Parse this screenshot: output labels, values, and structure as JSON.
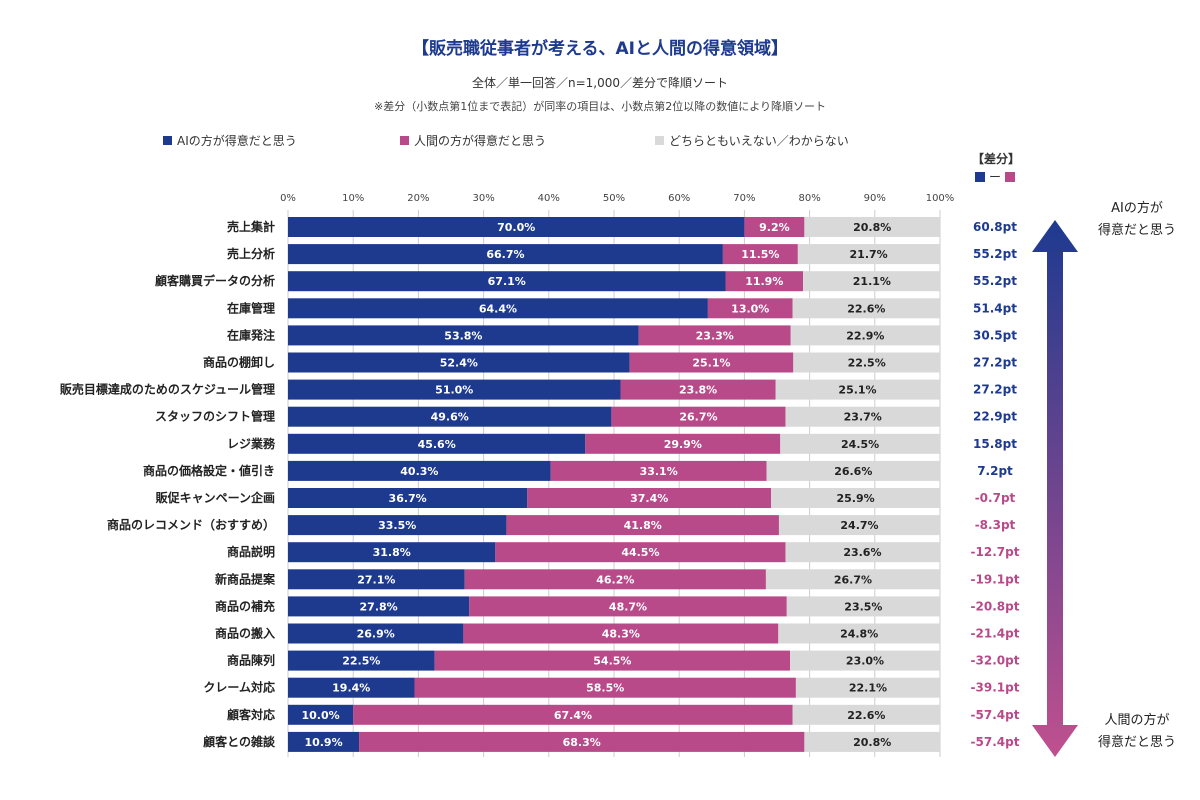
{
  "title": "【販売職従事者が考える、AIと人間の得意領域】",
  "subtitle": "全体／単一回答／n=1,000／差分で降順ソート",
  "note": "※差分（小数点第1位まで表記）が同率の項目は、小数点第2位以降の数値により降順ソート",
  "legend": {
    "ai": "AIの方が得意だと思う",
    "human": "人間の方が得意だと思う",
    "neither": "どちらともいえない／わからない"
  },
  "diff_header": "【差分】",
  "diff_dash": "ー",
  "arrow": {
    "top": [
      "AIの方が",
      "得意だと思う"
    ],
    "bottom": [
      "人間の方が",
      "得意だと思う"
    ]
  },
  "colors": {
    "ai": "#1d3a8f",
    "human": "#b94a8a",
    "neither": "#d9d9d9",
    "diff_positive": "#1d3a8f",
    "diff_negative": "#b94a8a",
    "grid": "#cccccc"
  },
  "chart_data": {
    "type": "bar",
    "orientation": "horizontal",
    "stacked": true,
    "xlim": [
      0,
      100
    ],
    "x_ticks": [
      "0%",
      "10%",
      "20%",
      "30%",
      "40%",
      "50%",
      "60%",
      "70%",
      "80%",
      "90%",
      "100%"
    ],
    "grid": true,
    "legend_position": "top",
    "categories": [
      "売上集計",
      "売上分析",
      "顧客購買データの分析",
      "在庫管理",
      "在庫発注",
      "商品の棚卸し",
      "販売目標達成のためのスケジュール管理",
      "スタッフのシフト管理",
      "レジ業務",
      "商品の価格設定・値引き",
      "販促キャンペーン企画",
      "商品のレコメンド（おすすめ）",
      "商品説明",
      "新商品提案",
      "商品の補充",
      "商品の搬入",
      "商品陳列",
      "クレーム対応",
      "顧客対応",
      "顧客との雑談"
    ],
    "series": [
      {
        "name": "AIの方が得意だと思う",
        "values": [
          70.0,
          66.7,
          67.1,
          64.4,
          53.8,
          52.4,
          51.0,
          49.6,
          45.6,
          40.3,
          36.7,
          33.5,
          31.8,
          27.1,
          27.8,
          26.9,
          22.5,
          19.4,
          10.0,
          10.9
        ]
      },
      {
        "name": "人間の方が得意だと思う",
        "values": [
          9.2,
          11.5,
          11.9,
          13.0,
          23.3,
          25.1,
          23.8,
          26.7,
          29.9,
          33.1,
          37.4,
          41.8,
          44.5,
          46.2,
          48.7,
          48.3,
          54.5,
          58.5,
          67.4,
          68.3
        ]
      },
      {
        "name": "どちらともいえない／わからない",
        "values": [
          20.8,
          21.7,
          21.1,
          22.6,
          22.9,
          22.5,
          25.1,
          23.7,
          24.5,
          26.6,
          25.9,
          24.7,
          23.6,
          26.7,
          23.5,
          24.8,
          23.0,
          22.1,
          22.6,
          20.8
        ]
      }
    ],
    "diff_labels": [
      "60.8pt",
      "55.2pt",
      "55.2pt",
      "51.4pt",
      "30.5pt",
      "27.2pt",
      "27.2pt",
      "22.9pt",
      "15.8pt",
      "7.2pt",
      "-0.7pt",
      "-8.3pt",
      "-12.7pt",
      "-19.1pt",
      "-20.8pt",
      "-21.4pt",
      "-32.0pt",
      "-39.1pt",
      "-57.4pt",
      "-57.4pt"
    ],
    "diff_values": [
      60.8,
      55.2,
      55.2,
      51.4,
      30.5,
      27.2,
      27.2,
      22.9,
      15.8,
      7.2,
      -0.7,
      -8.3,
      -12.7,
      -19.1,
      -20.8,
      -21.4,
      -32.0,
      -39.1,
      -57.4,
      -57.4
    ]
  }
}
